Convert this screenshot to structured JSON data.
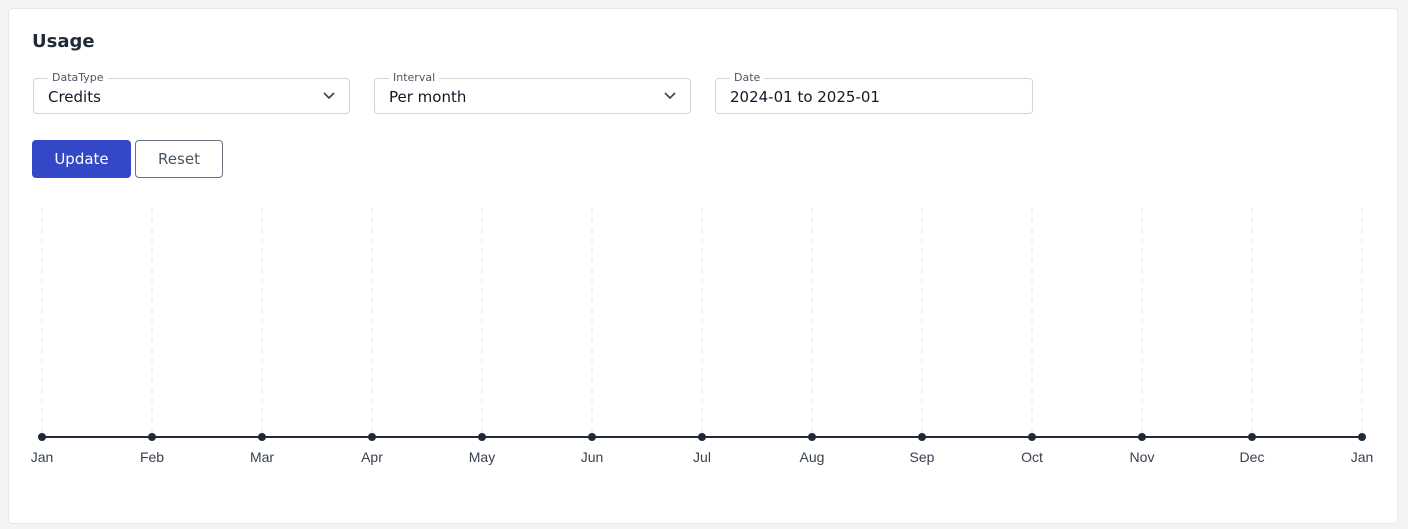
{
  "title": "Usage",
  "filters": [
    {
      "label": "DataType",
      "value": "Credits"
    },
    {
      "label": "Interval",
      "value": "Per month"
    },
    {
      "label": "Date",
      "value": "2024-01 to 2025-01"
    }
  ],
  "buttons": [
    "Update",
    "Reset"
  ],
  "chart_data": {
    "type": "line",
    "categories": [
      "Jan",
      "Feb",
      "Mar",
      "Apr",
      "May",
      "Jun",
      "Jul",
      "Aug",
      "Sep",
      "Oct",
      "Nov",
      "Dec",
      "Jan"
    ],
    "values": [
      0,
      0,
      0,
      0,
      0,
      0,
      0,
      0,
      0,
      0,
      0,
      0,
      0
    ],
    "color": "#1f2937",
    "grid": true
  }
}
